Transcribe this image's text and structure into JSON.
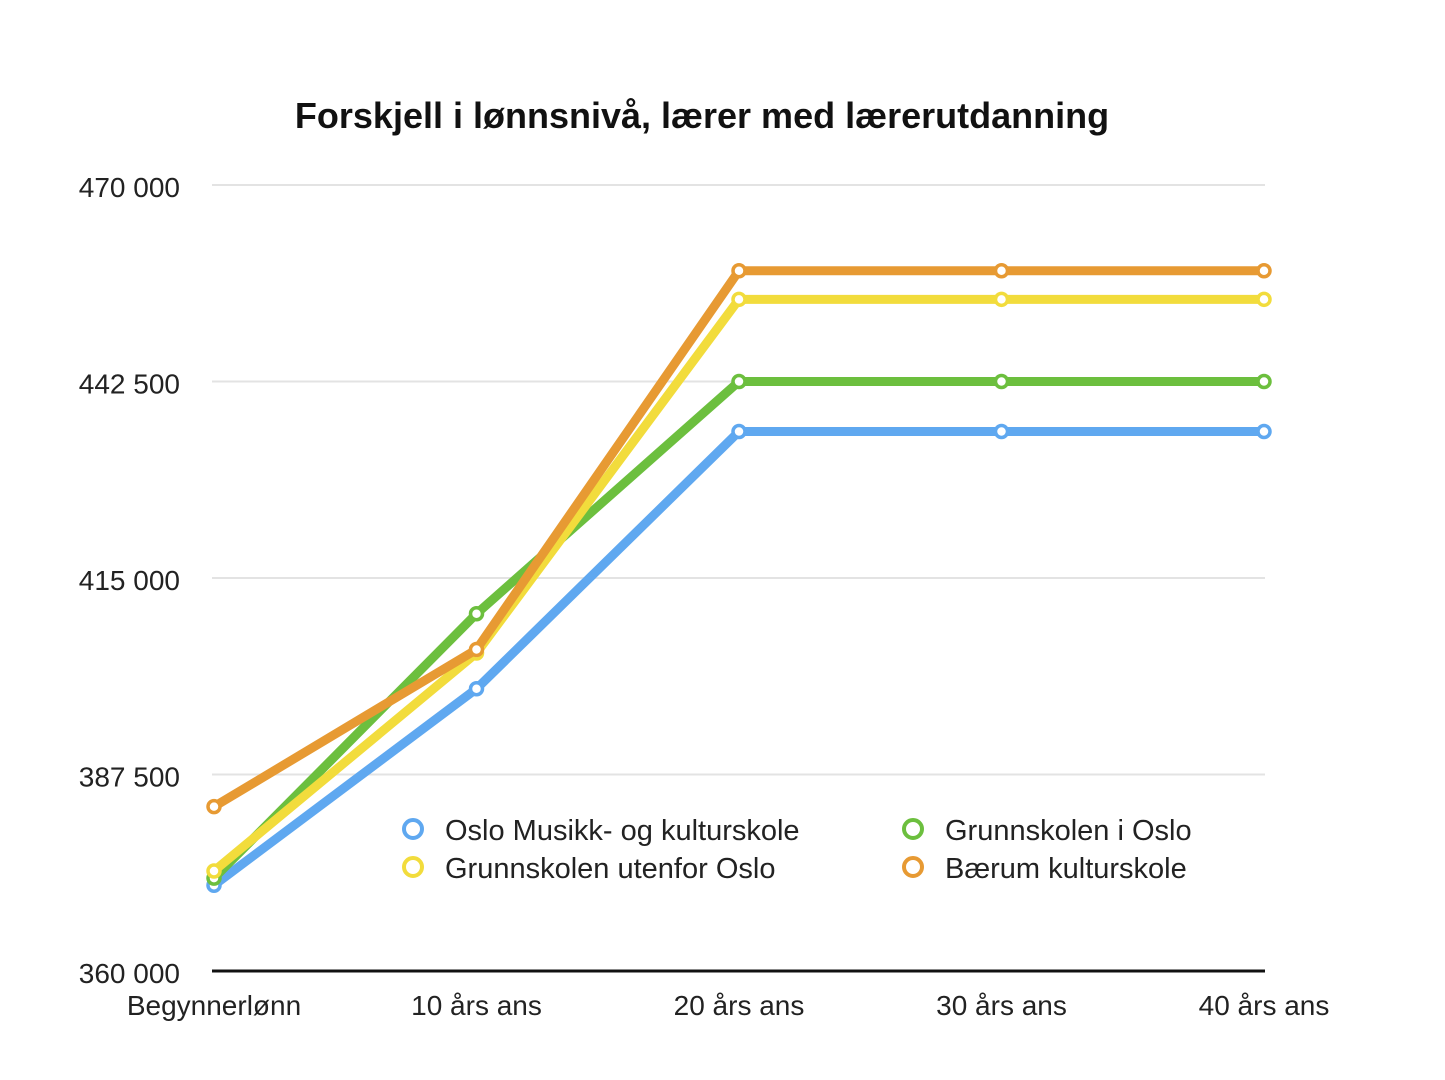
{
  "chart_data": {
    "type": "line",
    "title": "Forskjell i lønnsnivå, lærer med lærerutdanning",
    "xlabel": "",
    "ylabel": "",
    "categories": [
      "Begynnerlønn",
      "10 års ans",
      "20 års ans",
      "30 års ans",
      "40 års ans"
    ],
    "ylim": [
      360000,
      470000
    ],
    "yticks": [
      360000,
      387500,
      415000,
      442500,
      470000
    ],
    "ytick_labels": [
      "360 000",
      "387 500",
      "415 000",
      "442 500",
      "470 000"
    ],
    "grid": true,
    "legend_position": "bottom-right (inside plot)",
    "series": [
      {
        "name": "Oslo Musikk- og kulturskole",
        "color": "#5fa8f0",
        "values": [
          372000,
          399500,
          435500,
          435500,
          435500
        ]
      },
      {
        "name": "Grunnskolen i Oslo",
        "color": "#6cbf3e",
        "values": [
          373000,
          410000,
          442500,
          442500,
          442500
        ]
      },
      {
        "name": "Grunnskolen utenfor Oslo",
        "color": "#f2dc3c",
        "values": [
          374000,
          404500,
          454000,
          454000,
          454000
        ]
      },
      {
        "name": "Bærum kulturskole",
        "color": "#e79a33",
        "values": [
          383000,
          405000,
          458000,
          458000,
          458000
        ]
      }
    ]
  }
}
